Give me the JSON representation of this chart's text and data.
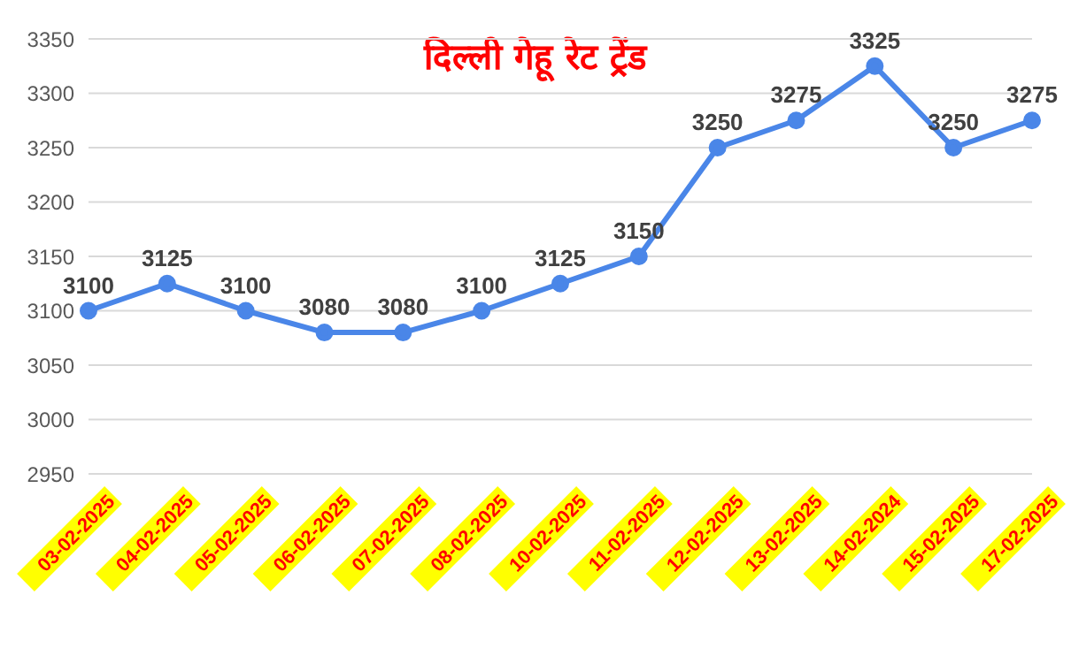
{
  "chart_data": {
    "type": "line",
    "title": "दिल्ली गेहू रेट ट्रेंड",
    "categories": [
      "03-02-2025",
      "04-02-2025",
      "05-02-2025",
      "06-02-2025",
      "07-02-2025",
      "08-02-2025",
      "10-02-2025",
      "11-02-2025",
      "12-02-2025",
      "13-02-2025",
      "14-02-2024",
      "15-02-2025",
      "17-02-2025"
    ],
    "series": [
      {
        "color": "#4a86e8",
        "values": [
          3100,
          3125,
          3100,
          3080,
          3080,
          3100,
          3125,
          3150,
          3250,
          3275,
          3325,
          3250,
          3275
        ]
      }
    ],
    "ylim": [
      2950,
      3350
    ],
    "yticks": [
      2950,
      3000,
      3050,
      3100,
      3150,
      3200,
      3250,
      3300,
      3350
    ],
    "grid": "y",
    "marker": "circle",
    "line_style": "solid",
    "data_labels": true
  }
}
